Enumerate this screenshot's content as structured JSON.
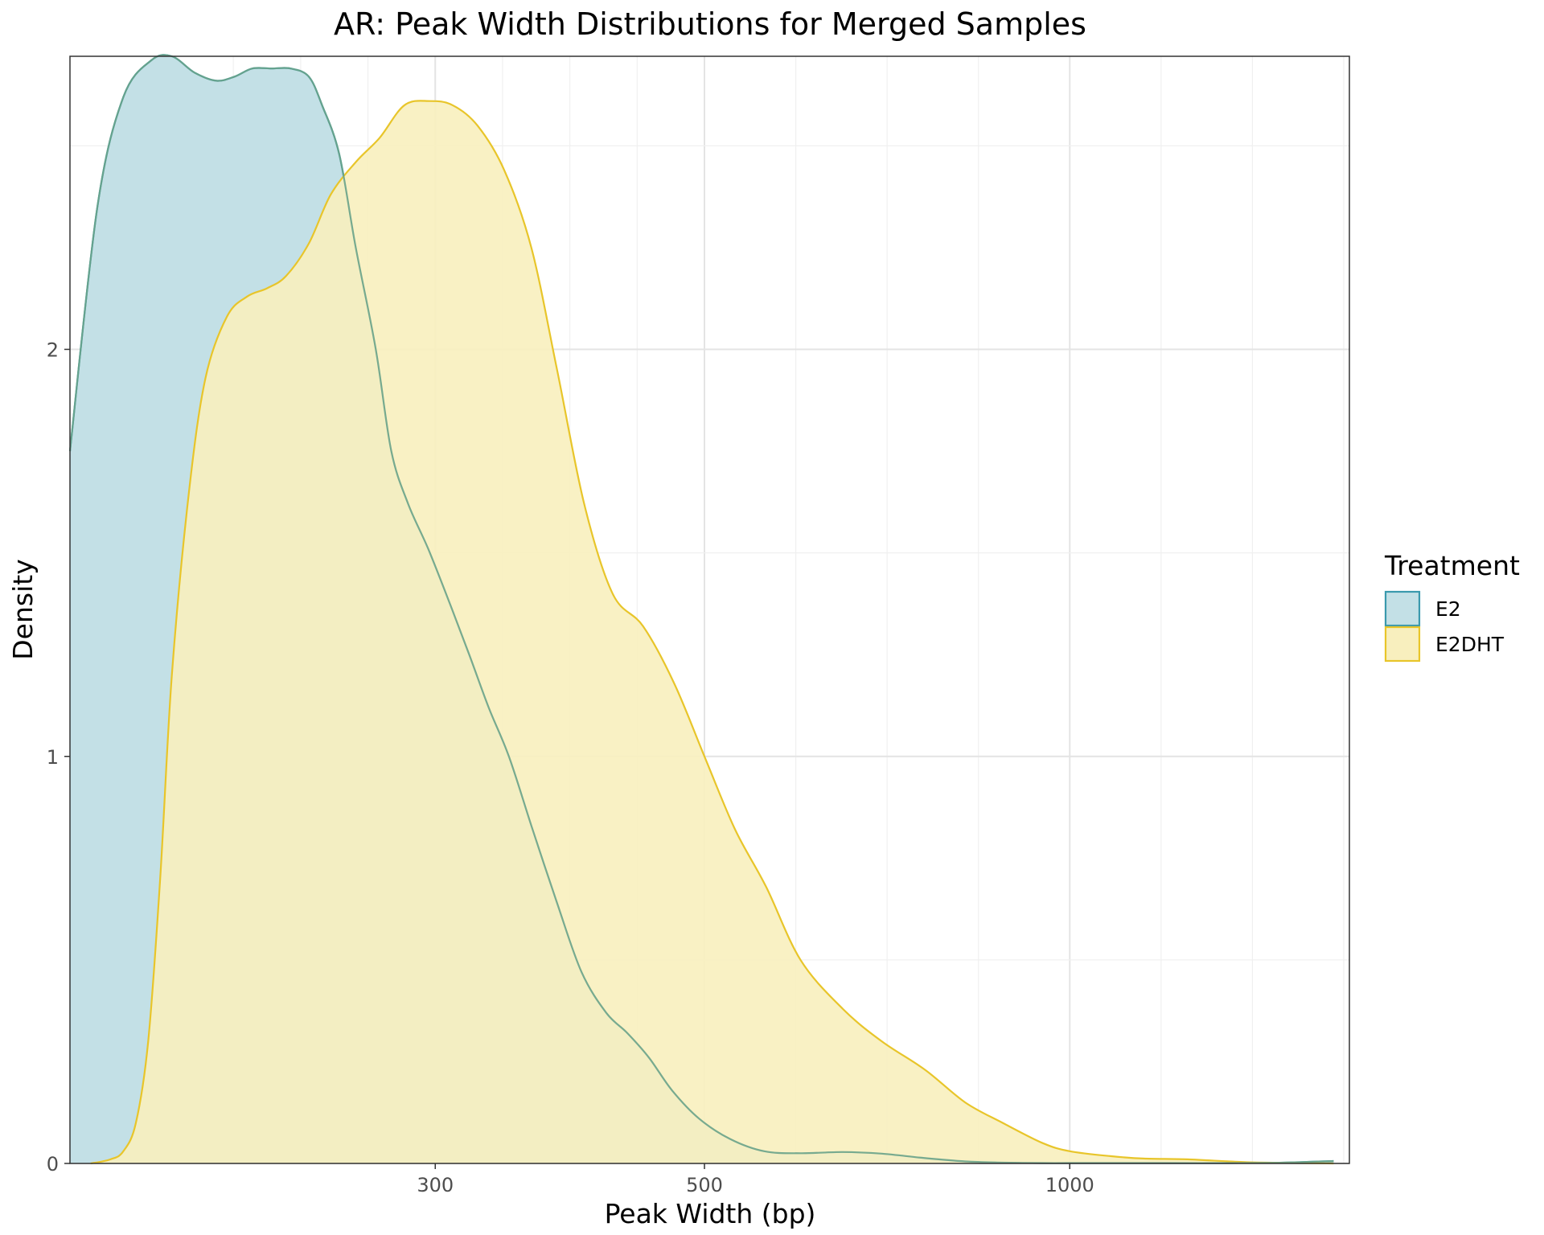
{
  "chart_data": {
    "type": "area",
    "title": "AR: Peak Width Distributions for Merged Samples",
    "xlabel": "Peak Width (bp)",
    "ylabel": "Density",
    "x_scale": "log10",
    "xlim": [
      150,
      1700
    ],
    "ylim": [
      0,
      2.72
    ],
    "x_ticks": [
      300,
      500,
      1000
    ],
    "y_ticks": [
      0,
      1,
      2
    ],
    "grid": true,
    "legend": {
      "title": "Treatment",
      "position": "right"
    },
    "series": [
      {
        "name": "E2",
        "fill": "#c3e0e6",
        "stroke": "#3a99ad",
        "x": [
          150,
          158,
          166,
          175,
          182,
          190,
          198,
          205,
          212,
          220,
          228,
          236,
          242,
          250,
          258,
          268,
          276,
          285,
          296,
          308,
          320,
          332,
          345,
          360,
          378,
          396,
          415,
          432,
          450,
          470,
          495,
          525,
          560,
          600,
          650,
          700,
          760,
          820,
          880,
          950,
          1000,
          1100,
          1200,
          1350,
          1500,
          1650
        ],
        "y": [
          1.75,
          2.35,
          2.62,
          2.71,
          2.72,
          2.68,
          2.66,
          2.67,
          2.69,
          2.69,
          2.69,
          2.67,
          2.6,
          2.48,
          2.25,
          2.0,
          1.75,
          1.62,
          1.51,
          1.38,
          1.25,
          1.12,
          1.0,
          0.83,
          0.64,
          0.47,
          0.37,
          0.32,
          0.26,
          0.18,
          0.11,
          0.06,
          0.03,
          0.025,
          0.028,
          0.024,
          0.013,
          0.005,
          0.002,
          0.001,
          0.001,
          0.001,
          0.001,
          0.001,
          0.002,
          0.006
        ]
      },
      {
        "name": "E2DHT",
        "fill": "#f8efbe",
        "stroke": "#e8c52a",
        "x": [
          156,
          162,
          166,
          170,
          174,
          178,
          182,
          188,
          194,
          202,
          210,
          218,
          226,
          236,
          246,
          258,
          270,
          283,
          297,
          310,
          325,
          342,
          360,
          378,
          398,
          420,
          445,
          472,
          500,
          530,
          562,
          600,
          650,
          700,
          760,
          820,
          880,
          950,
          1000,
          1080,
          1150,
          1250,
          1400,
          1550,
          1650
        ],
        "y": [
          0.0,
          0.01,
          0.03,
          0.1,
          0.3,
          0.7,
          1.2,
          1.65,
          1.93,
          2.08,
          2.13,
          2.15,
          2.18,
          2.26,
          2.38,
          2.46,
          2.52,
          2.6,
          2.61,
          2.6,
          2.55,
          2.44,
          2.25,
          1.95,
          1.62,
          1.4,
          1.32,
          1.18,
          1.0,
          0.82,
          0.68,
          0.5,
          0.38,
          0.3,
          0.23,
          0.15,
          0.1,
          0.05,
          0.03,
          0.018,
          0.012,
          0.01,
          0.003,
          0.001,
          0.0
        ]
      }
    ]
  }
}
